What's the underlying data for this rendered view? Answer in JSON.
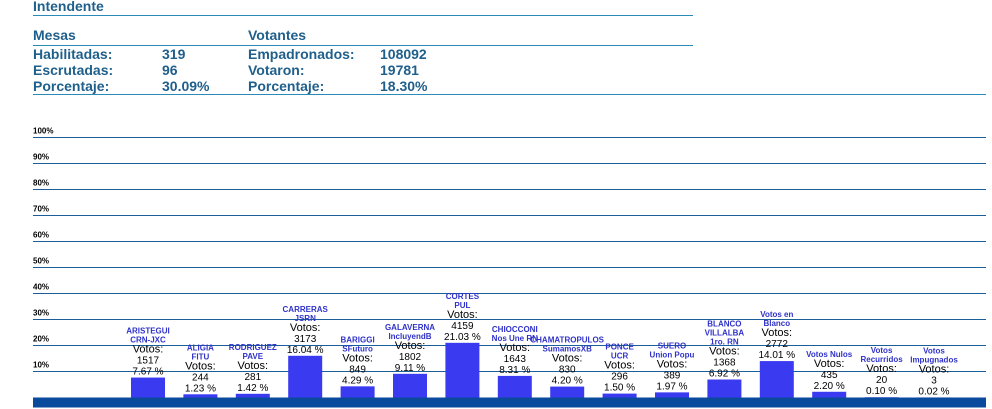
{
  "header": {
    "title": "Intendente"
  },
  "mesas": {
    "heading": "Mesas",
    "rows": [
      {
        "label": "Habilitadas:",
        "value": "319"
      },
      {
        "label": "Escrutadas:",
        "value": "96"
      },
      {
        "label": "Porcentaje:",
        "value": "30.09%"
      }
    ]
  },
  "votantes": {
    "heading": "Votantes",
    "rows": [
      {
        "label": "Empadronados:",
        "value": "108092"
      },
      {
        "label": "Votaron:",
        "value": "19781"
      },
      {
        "label": "Porcentaje:",
        "value": "18.30%"
      }
    ]
  },
  "colors": {
    "bar": "#3a3af0",
    "axis": "#0a4a9c",
    "grid": "#1a5f9a",
    "label": "#2f32c8"
  },
  "chart_data": {
    "type": "bar",
    "y_ticks": [
      "100%",
      "90%",
      "80%",
      "70%",
      "60%",
      "50%",
      "40%",
      "30%",
      "20%",
      "10%"
    ],
    "ylim": [
      0,
      100
    ],
    "votes_label": "Votos:",
    "categories": [
      {
        "name": [
          "ARISTEGUI",
          "CRN-JXC"
        ],
        "votes": "1517",
        "pct_label": "7.67 %",
        "value": 7.67
      },
      {
        "name": [
          "ALIGIA",
          "FITU"
        ],
        "votes": "244",
        "pct_label": "1.23 %",
        "value": 1.23
      },
      {
        "name": [
          "RODRIGUEZ",
          "PAVE"
        ],
        "votes": "281",
        "pct_label": "1.42 %",
        "value": 1.42
      },
      {
        "name": [
          "CARRERAS",
          "JSRN"
        ],
        "votes": "3173",
        "pct_label": "16.04 %",
        "value": 16.04
      },
      {
        "name": [
          "BARIGGI",
          "SFuturo"
        ],
        "votes": "849",
        "pct_label": "4.29 %",
        "value": 4.29
      },
      {
        "name": [
          "GALAVERNA",
          "IncluyendB"
        ],
        "votes": "1802",
        "pct_label": "9.11 %",
        "value": 9.11
      },
      {
        "name": [
          "CORTES",
          "PUL"
        ],
        "votes": "4159",
        "pct_label": "21.03 %",
        "value": 21.03
      },
      {
        "name": [
          "CHIOCCONI",
          "Nos Une RN"
        ],
        "votes": "1643",
        "pct_label": "8.31 %",
        "value": 8.31
      },
      {
        "name": [
          "CHAMATROPULOS",
          "SumamosXB"
        ],
        "votes": "830",
        "pct_label": "4.20 %",
        "value": 4.2
      },
      {
        "name": [
          "PONCE",
          "UCR"
        ],
        "votes": "296",
        "pct_label": "1.50 %",
        "value": 1.5
      },
      {
        "name": [
          "SUERO",
          "Union Popu"
        ],
        "votes": "389",
        "pct_label": "1.97 %",
        "value": 1.97
      },
      {
        "name": [
          "BLANCO",
          "VILLALBA",
          "1ro. RN"
        ],
        "votes": "1368",
        "pct_label": "6.92 %",
        "value": 6.92
      },
      {
        "name": [
          "Votos en",
          "Blanco"
        ],
        "votes": "2772",
        "pct_label": "14.01 %",
        "value": 14.01
      },
      {
        "name": [
          "Votos Nulos"
        ],
        "votes": "435",
        "pct_label": "2.20 %",
        "value": 2.2
      },
      {
        "name": [
          "Votos",
          "Recurridos"
        ],
        "votes": "20",
        "pct_label": "0.10 %",
        "value": 0.1
      },
      {
        "name": [
          "Votos",
          "Impugnados"
        ],
        "votes": "3",
        "pct_label": "0.02 %",
        "value": 0.02
      }
    ]
  }
}
